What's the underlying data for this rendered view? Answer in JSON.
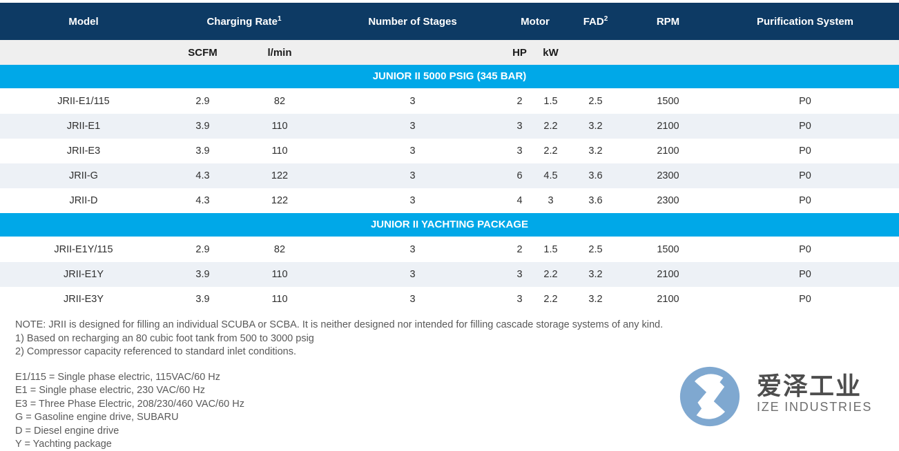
{
  "colors": {
    "header_bg": "#0d3a64",
    "section_bg": "#00a8e8",
    "subheader_bg": "#efefef",
    "stripe_bg": "#edf1f6",
    "header_text": "#ffffff",
    "cell_text": "#2f2f2f",
    "note_text": "#595959",
    "logo_blue": "#7fa8d0"
  },
  "table": {
    "header": {
      "model": "Model",
      "charging_rate": {
        "label": "Charging Rate",
        "sup": "1"
      },
      "stages": "Number of Stages",
      "motor": "Motor",
      "fad": {
        "label": "FAD",
        "sup": "2"
      },
      "rpm": "RPM",
      "purification": "Purification System"
    },
    "subheader": {
      "scfm": "SCFM",
      "lmin": "l/min",
      "hp": "HP",
      "kw": "kW"
    },
    "sections": [
      {
        "title": "JUNIOR II 5000 PSIG (345 BAR)",
        "rows": [
          [
            "JRII-E1/115",
            "2.9",
            "82",
            "3",
            "2",
            "1.5",
            "2.5",
            "1500",
            "P0"
          ],
          [
            "JRII-E1",
            "3.9",
            "110",
            "3",
            "3",
            "2.2",
            "3.2",
            "2100",
            "P0"
          ],
          [
            "JRII-E3",
            "3.9",
            "110",
            "3",
            "3",
            "2.2",
            "3.2",
            "2100",
            "P0"
          ],
          [
            "JRII-G",
            "4.3",
            "122",
            "3",
            "6",
            "4.5",
            "3.6",
            "2300",
            "P0"
          ],
          [
            "JRII-D",
            "4.3",
            "122",
            "3",
            "4",
            "3",
            "3.6",
            "2300",
            "P0"
          ]
        ]
      },
      {
        "title": "JUNIOR II YACHTING PACKAGE",
        "rows": [
          [
            "JRII-E1Y/115",
            "2.9",
            "82",
            "3",
            "2",
            "1.5",
            "2.5",
            "1500",
            "P0"
          ],
          [
            "JRII-E1Y",
            "3.9",
            "110",
            "3",
            "3",
            "2.2",
            "3.2",
            "2100",
            "P0"
          ],
          [
            "JRII-E3Y",
            "3.9",
            "110",
            "3",
            "3",
            "2.2",
            "3.2",
            "2100",
            "P0"
          ]
        ]
      }
    ]
  },
  "notes": {
    "line1": "NOTE: JRII is designed for filling an individual SCUBA or SCBA. It is neither designed nor intended for filling cascade storage systems of any kind.",
    "line2": "1) Based on recharging an 80 cubic foot tank from 500 to 3000 psig",
    "line3": "2) Compressor capacity referenced to standard inlet conditions."
  },
  "legend": [
    "E1/115 = Single phase electric, 115VAC/60 Hz",
    "E1 = Single phase electric, 230 VAC/60 Hz",
    "E3 = Three Phase Electric, 208/230/460 VAC/60 Hz",
    "G = Gasoline engine drive, SUBARU",
    "D = Diesel engine drive",
    "Y = Yachting package"
  ],
  "logo": {
    "name_cn": "爱泽工业",
    "name_en": "IZE INDUSTRIES"
  }
}
